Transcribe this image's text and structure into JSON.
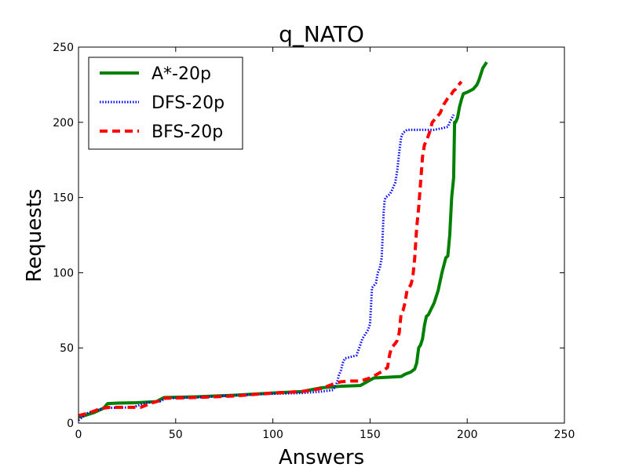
{
  "chart_data": {
    "type": "line",
    "title": "q_NATO",
    "xlabel": "Answers",
    "ylabel": "Requests",
    "xlim": [
      0,
      250
    ],
    "ylim": [
      0,
      250
    ],
    "xticks": [
      0,
      50,
      100,
      150,
      200,
      250
    ],
    "yticks": [
      0,
      50,
      100,
      150,
      200,
      250
    ],
    "grid": false,
    "legend_position": "upper-left",
    "series": [
      {
        "name": "A*-20p",
        "color": "#008000",
        "style": "solid",
        "points": [
          [
            0,
            4
          ],
          [
            3,
            5
          ],
          [
            8,
            7
          ],
          [
            13,
            10
          ],
          [
            15,
            13
          ],
          [
            20,
            13.3
          ],
          [
            30,
            13.6
          ],
          [
            40,
            14.3
          ],
          [
            44,
            17
          ],
          [
            60,
            17.5
          ],
          [
            80,
            18.5
          ],
          [
            100,
            20
          ],
          [
            115,
            21
          ],
          [
            125,
            23.5
          ],
          [
            135,
            24.5
          ],
          [
            145,
            25
          ],
          [
            152,
            30
          ],
          [
            166,
            31
          ],
          [
            168,
            32.5
          ],
          [
            171,
            34
          ],
          [
            173,
            36
          ],
          [
            174,
            40
          ],
          [
            175,
            50
          ],
          [
            176,
            52
          ],
          [
            177,
            56
          ],
          [
            178,
            65
          ],
          [
            179,
            71
          ],
          [
            180,
            72
          ],
          [
            183,
            80
          ],
          [
            185,
            88
          ],
          [
            187,
            100
          ],
          [
            189,
            110
          ],
          [
            190,
            111
          ],
          [
            191,
            125
          ],
          [
            192,
            150
          ],
          [
            193,
            163
          ],
          [
            193.5,
            200
          ],
          [
            194,
            200
          ],
          [
            195,
            203
          ],
          [
            196,
            210
          ],
          [
            197,
            215
          ],
          [
            198,
            219
          ],
          [
            200,
            220
          ],
          [
            203,
            222
          ],
          [
            205,
            225
          ],
          [
            206,
            228
          ],
          [
            207,
            232
          ],
          [
            208,
            236
          ],
          [
            210,
            240
          ]
        ]
      },
      {
        "name": "DFS-20p",
        "color": "#0000ff",
        "style": "dotted",
        "points": [
          [
            0,
            2
          ],
          [
            3,
            5
          ],
          [
            5,
            7
          ],
          [
            8,
            8
          ],
          [
            11,
            9
          ],
          [
            14,
            10
          ],
          [
            17,
            10.2
          ],
          [
            28,
            10.5
          ],
          [
            35,
            13.5
          ],
          [
            42,
            14.5
          ],
          [
            45,
            16.5
          ],
          [
            60,
            17
          ],
          [
            80,
            18.5
          ],
          [
            100,
            19.5
          ],
          [
            115,
            20
          ],
          [
            125,
            21
          ],
          [
            131,
            22
          ],
          [
            133,
            27
          ],
          [
            134,
            32
          ],
          [
            135,
            35
          ],
          [
            136,
            40
          ],
          [
            137,
            43
          ],
          [
            140,
            44
          ],
          [
            143,
            45
          ],
          [
            145,
            52
          ],
          [
            146,
            56
          ],
          [
            148,
            60
          ],
          [
            149,
            62
          ],
          [
            150,
            66
          ],
          [
            151,
            90
          ],
          [
            153,
            93
          ],
          [
            154,
            100
          ],
          [
            155,
            103
          ],
          [
            156,
            110
          ],
          [
            157,
            140
          ],
          [
            157.5,
            148
          ],
          [
            158,
            150
          ],
          [
            160,
            152
          ],
          [
            161,
            154
          ],
          [
            162,
            157
          ],
          [
            163,
            160
          ],
          [
            164,
            168
          ],
          [
            165,
            180
          ],
          [
            166,
            190
          ],
          [
            167,
            193
          ],
          [
            169,
            195
          ],
          [
            175,
            195
          ],
          [
            183,
            195
          ],
          [
            187,
            196
          ],
          [
            190,
            197
          ],
          [
            191,
            200
          ],
          [
            193,
            205
          ]
        ]
      },
      {
        "name": "BFS-20p",
        "color": "#ff0000",
        "style": "dashed",
        "points": [
          [
            0,
            5
          ],
          [
            3,
            6
          ],
          [
            6,
            7
          ],
          [
            10,
            9
          ],
          [
            13,
            10
          ],
          [
            16,
            10.5
          ],
          [
            25,
            10.5
          ],
          [
            32,
            10.5
          ],
          [
            38,
            13.5
          ],
          [
            42,
            15
          ],
          [
            44,
            16.5
          ],
          [
            60,
            17
          ],
          [
            80,
            18
          ],
          [
            100,
            20
          ],
          [
            115,
            21
          ],
          [
            125,
            23
          ],
          [
            131,
            26
          ],
          [
            135,
            27.5
          ],
          [
            140,
            28
          ],
          [
            145,
            28
          ],
          [
            150,
            30
          ],
          [
            153,
            32
          ],
          [
            157,
            35
          ],
          [
            159,
            37
          ],
          [
            160,
            45
          ],
          [
            161,
            50
          ],
          [
            163,
            53
          ],
          [
            164,
            55
          ],
          [
            165,
            60
          ],
          [
            166,
            73
          ],
          [
            167,
            75
          ],
          [
            168,
            80
          ],
          [
            169,
            88
          ],
          [
            171,
            92
          ],
          [
            172,
            97
          ],
          [
            173,
            110
          ],
          [
            174,
            130
          ],
          [
            175,
            143
          ],
          [
            176,
            160
          ],
          [
            177,
            177
          ],
          [
            178,
            185
          ],
          [
            179,
            188
          ],
          [
            180,
            191
          ],
          [
            181,
            195
          ],
          [
            182,
            200
          ],
          [
            184,
            203
          ],
          [
            186,
            206
          ],
          [
            188,
            212
          ],
          [
            190,
            216
          ],
          [
            192,
            219
          ],
          [
            193,
            221
          ],
          [
            194,
            222
          ],
          [
            195,
            224
          ],
          [
            197,
            227
          ]
        ]
      }
    ]
  }
}
